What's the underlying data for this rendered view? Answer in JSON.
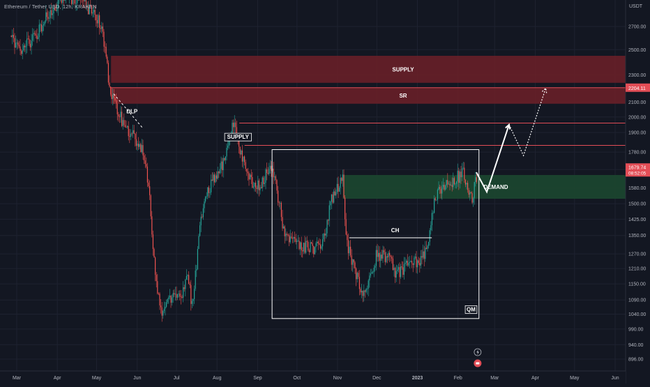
{
  "symbol_title": "Ethereum / Tether USD, 12h, KRAKEN",
  "chart_data": {
    "type": "candlestick",
    "currency": "USDT",
    "y_ticks": [
      "2700.00",
      "2500.00",
      "2300.00",
      "2100.00",
      "2000.00",
      "1900.00",
      "1780.00",
      "1680.00",
      "1580.00",
      "1500.00",
      "1425.00",
      "1350.00",
      "1270.00",
      "1210.00",
      "1150.00",
      "1090.00",
      "1040.00",
      "990.00",
      "940.00",
      "896.00"
    ],
    "x_ticks": [
      "Mar",
      "Apr",
      "May",
      "Jun",
      "Jul",
      "Aug",
      "Sep",
      "Oct",
      "Nov",
      "Dec",
      "2023",
      "Feb",
      "Mar",
      "Apr",
      "May",
      "Jun"
    ],
    "price_path": [
      [
        "2022-02-24",
        2620
      ],
      [
        "2022-03-05",
        2500
      ],
      [
        "2022-03-15",
        2620
      ],
      [
        "2022-03-25",
        2800
      ],
      [
        "2022-04-05",
        3000
      ],
      [
        "2022-04-15",
        2950
      ],
      [
        "2022-04-25",
        2870
      ],
      [
        "2022-05-05",
        2720
      ],
      [
        "2022-05-11",
        2200
      ],
      [
        "2022-05-20",
        1980
      ],
      [
        "2022-05-28",
        1880
      ],
      [
        "2022-06-05",
        1800
      ],
      [
        "2022-06-10",
        1600
      ],
      [
        "2022-06-15",
        1150
      ],
      [
        "2022-06-20",
        1050
      ],
      [
        "2022-06-28",
        1110
      ],
      [
        "2022-07-05",
        1120
      ],
      [
        "2022-07-10",
        1180
      ],
      [
        "2022-07-13",
        1060
      ],
      [
        "2022-07-20",
        1450
      ],
      [
        "2022-07-28",
        1620
      ],
      [
        "2022-08-05",
        1700
      ],
      [
        "2022-08-14",
        1980
      ],
      [
        "2022-08-19",
        1770
      ],
      [
        "2022-08-26",
        1620
      ],
      [
        "2022-09-02",
        1580
      ],
      [
        "2022-09-10",
        1700
      ],
      [
        "2022-09-15",
        1600
      ],
      [
        "2022-09-22",
        1340
      ],
      [
        "2022-10-01",
        1310
      ],
      [
        "2022-10-10",
        1300
      ],
      [
        "2022-10-20",
        1290
      ],
      [
        "2022-10-27",
        1520
      ],
      [
        "2022-11-05",
        1620
      ],
      [
        "2022-11-08",
        1310
      ],
      [
        "2022-11-12",
        1240
      ],
      [
        "2022-11-21",
        1110
      ],
      [
        "2022-12-01",
        1270
      ],
      [
        "2022-12-10",
        1260
      ],
      [
        "2022-12-16",
        1190
      ],
      [
        "2022-12-25",
        1220
      ],
      [
        "2023-01-05",
        1250
      ],
      [
        "2023-01-10",
        1330
      ],
      [
        "2023-01-14",
        1540
      ],
      [
        "2023-01-24",
        1600
      ],
      [
        "2023-02-01",
        1640
      ],
      [
        "2023-02-05",
        1670
      ],
      [
        "2023-02-12",
        1520
      ],
      [
        "2023-02-16",
        1680
      ]
    ],
    "zones": [
      {
        "label": "SUPPLY",
        "kind": "supply",
        "low": 2240,
        "high": 2450,
        "from": "2022-05-12"
      },
      {
        "label": "SR",
        "kind": "supply",
        "low": 2090,
        "high": 2204.11,
        "from": "2022-05-12"
      },
      {
        "label": "DEMAND",
        "kind": "demand",
        "low": 1525,
        "high": 1650,
        "from": "2022-11-05"
      }
    ],
    "levels": [
      {
        "price": 2204.11,
        "from": "2022-05-12"
      },
      {
        "price": 1960,
        "from": "2022-08-18"
      },
      {
        "price": 1820,
        "from": "2022-08-22"
      }
    ],
    "annotations": [
      {
        "text": "SUPPLY",
        "date": "2022-08-17",
        "price": 1860,
        "boxed": true
      },
      {
        "text": "DLP",
        "date": "2022-05-28",
        "price": 2025
      },
      {
        "text": "CH",
        "date": "2022-12-15",
        "price": 1365
      },
      {
        "text": "QM",
        "date": "2023-02-11",
        "price": 1050,
        "boxed": true
      }
    ],
    "trend_lines": [
      {
        "name": "DLP",
        "points": [
          [
            "2022-05-14",
            2160
          ],
          [
            "2022-06-05",
            1930
          ]
        ]
      },
      {
        "name": "CH",
        "points": [
          [
            "2022-11-10",
            1340
          ],
          [
            "2023-01-12",
            1340
          ]
        ]
      }
    ],
    "qm_box": {
      "from": "2022-09-12",
      "to": "2023-02-17",
      "low": 1025,
      "high": 1795
    },
    "projection_solid": [
      [
        "2023-02-15",
        1665
      ],
      [
        "2023-02-23",
        1560
      ],
      [
        "2023-03-12",
        1950
      ]
    ],
    "projection_dotted": [
      [
        "2023-03-12",
        1950
      ],
      [
        "2023-03-23",
        1760
      ],
      [
        "2023-04-09",
        2200
      ]
    ],
    "current_price": "1679.74",
    "countdown": "08:52:05",
    "sr_level_label": "2204.11",
    "colors": {
      "background": "#131722",
      "up": "#26a69a",
      "down": "#ef5350",
      "supply_zone": "#6d2028",
      "demand_zone": "#1c4730",
      "level_line": "#e24d56",
      "price_tag": "#e24d56"
    }
  }
}
